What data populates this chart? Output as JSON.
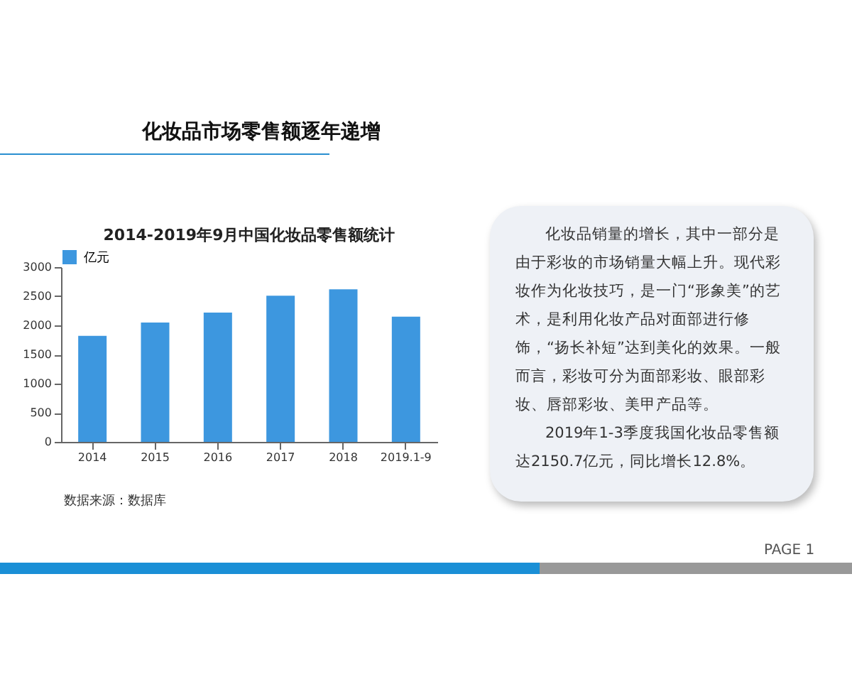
{
  "chart_data": {
    "type": "bar",
    "title": "化妆品市场零售额逐年递增",
    "subtitle": "2014-2019年9月中国化妆品零售额统计",
    "categories": [
      "2014",
      "2015",
      "2016",
      "2017",
      "2018",
      "2019.1-9"
    ],
    "series": [
      {
        "name": "亿元",
        "color": "#3d97df",
        "values": [
          1820,
          2050,
          2220,
          2510,
          2620,
          2150
        ]
      }
    ],
    "ylim": [
      0,
      3000
    ],
    "yticks": [
      0,
      500,
      1000,
      1500,
      2000,
      2500,
      3000
    ],
    "grid": false,
    "legend": "top",
    "annotations": [
      "数据来源：数据库",
      "化妆品销量的增长，其中一部分是由于彩妆的市场销量大幅上升。现代彩妆作为化妆技巧，是一门“形象美”的艺术，是利用化妆产品对面部进行修饰，“扬长补短”达到美化的效果。一般而言，彩妆可分为面部彩妆、眼部彩妆、唇部彩妆、美甲产品等。",
      "2019年1-3季度我国化妆品零售额达2150.7亿元，同比增长12.8%。",
      "PAGE 1"
    ]
  }
}
